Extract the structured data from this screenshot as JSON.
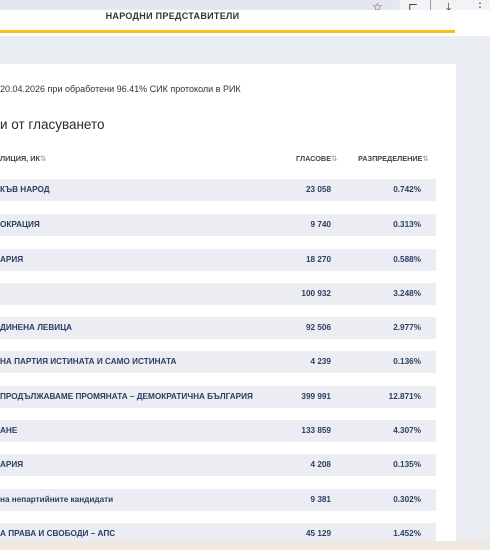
{
  "header": {
    "title": "НАРОДНИ ПРЕДСТАВИТЕЛИ"
  },
  "browser_icons": {
    "star": "☆",
    "extensions": "⊏",
    "download": "⤓",
    "more": "⋮"
  },
  "card": {
    "meta": "20.04.2026 при обработени 96.41% СИК протоколи в РИК",
    "heading": "и от гласуването",
    "columns": {
      "name": "ЛИЦИЯ, ИК",
      "votes": "ГЛАСОВЕ",
      "share": "РАЗПРЕДЕЛЕНИЕ",
      "sort": "⇅"
    }
  },
  "rows": [
    {
      "name": "КЪВ НАРОД",
      "votes": "23 058",
      "share": "0.742%"
    },
    {
      "name": "ОКРАЦИЯ",
      "votes": "9 740",
      "share": "0.313%"
    },
    {
      "name": "АРИЯ",
      "votes": "18 270",
      "share": "0.588%"
    },
    {
      "name": "",
      "votes": "100 932",
      "share": "3.248%"
    },
    {
      "name": "ДИНЕНА ЛЕВИЦА",
      "votes": "92 506",
      "share": "2.977%"
    },
    {
      "name": "НА ПАРТИЯ ИСТИНАТА И САМО ИСТИНАТА",
      "votes": "4 239",
      "share": "0.136%"
    },
    {
      "name": "ПРОДЪЛЖАВАМЕ ПРОМЯНАТА – ДЕМОКРАТИЧНА БЪЛГАРИЯ",
      "votes": "399 991",
      "share": "12.871%"
    },
    {
      "name": "АНЕ",
      "votes": "133 859",
      "share": "4.307%"
    },
    {
      "name": "АРИЯ",
      "votes": "4 208",
      "share": "0.135%"
    },
    {
      "name": "на непартийните кандидати",
      "votes": "9 381",
      "share": "0.302%"
    },
    {
      "name": "А ПРАВА И СВОБОДИ – АПС",
      "votes": "45 129",
      "share": "1.452%"
    }
  ]
}
